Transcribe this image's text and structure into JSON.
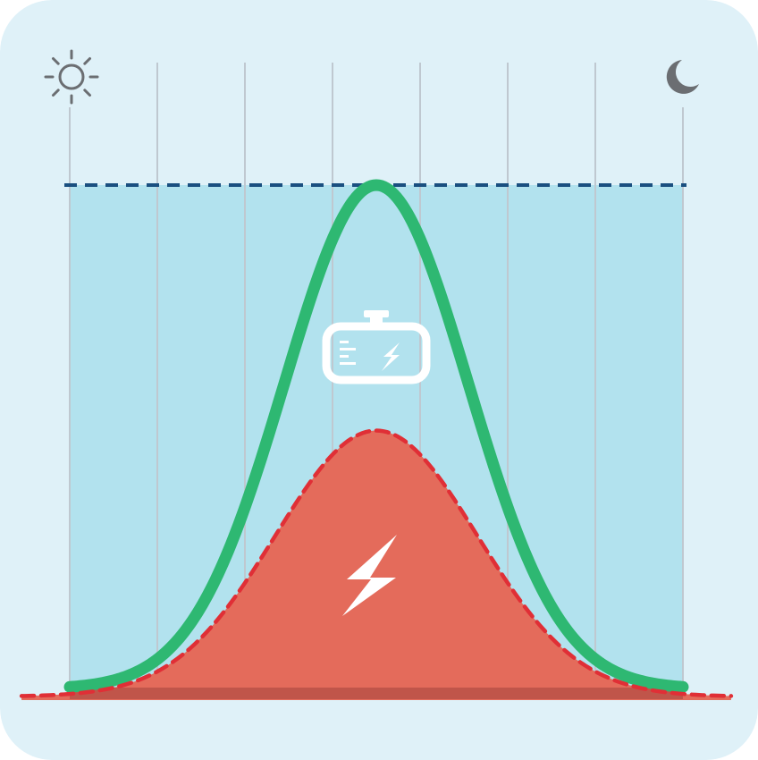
{
  "chart_data": {
    "type": "area",
    "x_range": [
      0,
      7
    ],
    "y_range": [
      0,
      1
    ],
    "vertical_gridlines": [
      0,
      1,
      2,
      3,
      4,
      5,
      6,
      7
    ],
    "series": [
      {
        "role": "capacity-limit",
        "style": "dashed",
        "color": "#1a4f80",
        "level": 1.0
      },
      {
        "role": "demand-curve",
        "style": "solid",
        "color": "#2eb872",
        "peak_x": 3.5,
        "peak_y": 1.0,
        "baseline_y": 0.015
      },
      {
        "role": "generation-area",
        "style": "dashed-filled",
        "color": "#e46b5b",
        "stroke_color": "#e02f36",
        "peak_x": 3.5,
        "peak_y": 0.52
      }
    ],
    "stored_area_color": "#b2e2ee"
  },
  "colors": {
    "card_background": "#dff1f8",
    "grid": "#bfc8d0",
    "icon": "#6b6e72",
    "baseline": "#c0554a"
  },
  "icons": {
    "start": "sun-icon",
    "end": "moon-icon",
    "storage": "battery-charging-icon",
    "generation": "lightning-bolt-icon"
  }
}
